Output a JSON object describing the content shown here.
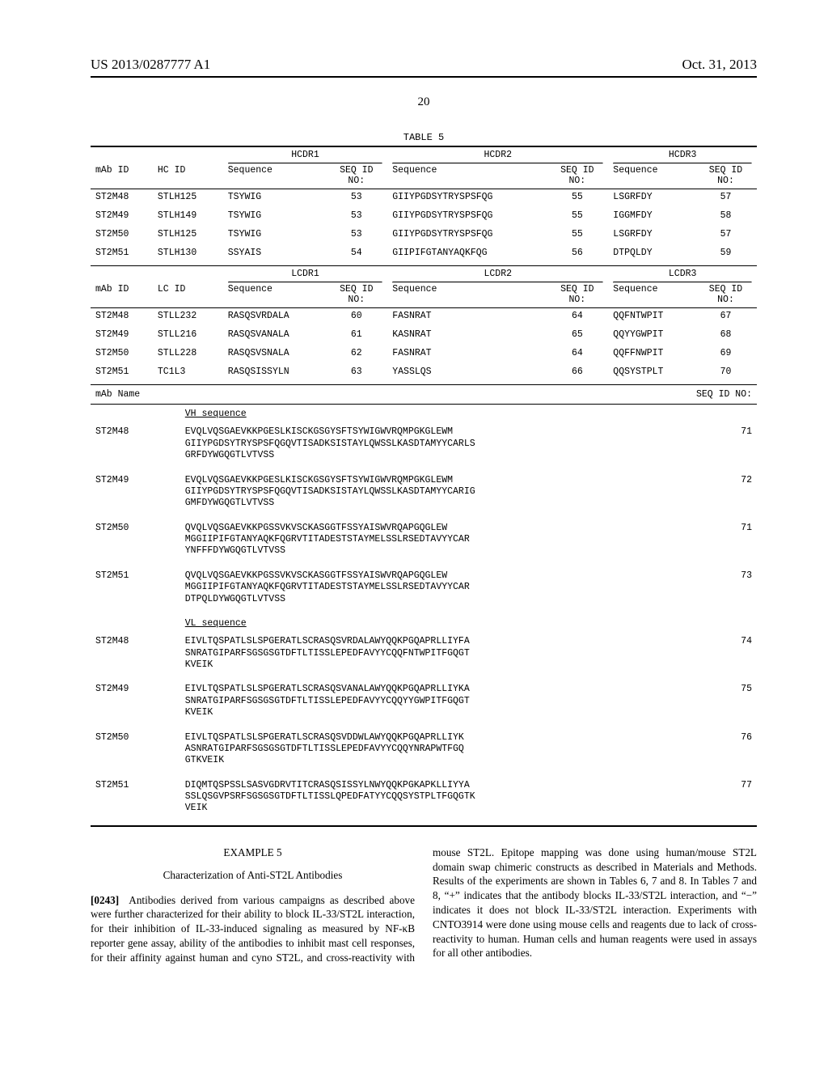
{
  "header": {
    "left": "US 2013/0287777 A1",
    "right": "Oct. 31, 2013",
    "page_number": "20"
  },
  "table5": {
    "caption": "TABLE 5",
    "heavy_groups": [
      "HCDR1",
      "HCDR2",
      "HCDR3"
    ],
    "heavy_columns": [
      "mAb ID",
      "HC ID",
      "Sequence",
      "SEQ ID\nNO:",
      "Sequence",
      "SEQ ID\nNO:",
      "Sequence",
      "SEQ ID\nNO:"
    ],
    "heavy_rows": [
      [
        "ST2M48",
        "STLH125",
        "TSYWIG",
        "53",
        "GIIYPGDSYTRYSPSFQG",
        "55",
        "LSGRFDY",
        "57"
      ],
      [
        "ST2M49",
        "STLH149",
        "TSYWIG",
        "53",
        "GIIYPGDSYTRYSPSFQG",
        "55",
        "IGGMFDY",
        "58"
      ],
      [
        "ST2M50",
        "STLH125",
        "TSYWIG",
        "53",
        "GIIYPGDSYTRYSPSFQG",
        "55",
        "LSGRFDY",
        "57"
      ],
      [
        "ST2M51",
        "STLH130",
        "SSYAIS",
        "54",
        "GIIPIFGTANYAQKFQG",
        "56",
        "DTPQLDY",
        "59"
      ]
    ],
    "light_groups": [
      "LCDR1",
      "LCDR2",
      "LCDR3"
    ],
    "light_columns": [
      "mAb ID",
      "LC ID",
      "Sequence",
      "SEQ ID\nNO:",
      "Sequence",
      "SEQ ID\nNO:",
      "Sequence",
      "SEQ ID\nNO:"
    ],
    "light_rows": [
      [
        "ST2M48",
        "STLL232",
        "RASQSVRDALA",
        "60",
        "FASNRAT",
        "64",
        "QQFNTWPIT",
        "67"
      ],
      [
        "ST2M49",
        "STLL216",
        "RASQSVANALA",
        "61",
        "KASNRAT",
        "65",
        "QQYYGWPIT",
        "68"
      ],
      [
        "ST2M50",
        "STLL228",
        "RASQSVSNALA",
        "62",
        "FASNRAT",
        "64",
        "QQFFNWPIT",
        "69"
      ],
      [
        "ST2M51",
        "TC1L3",
        "RASQSISSYLN",
        "63",
        "YASSLQS",
        "66",
        "QQSYSTPLT",
        "70"
      ]
    ],
    "seq_header": [
      "mAb Name",
      "",
      "SEQ ID NO:"
    ],
    "vh_label": "VH sequence",
    "vh_rows": [
      {
        "id": "ST2M48",
        "seq": "EVQLVQSGAEVKKPGESLKISCKGSGYSFTSYWIGWVRQMPGKGLEWM\nGIIYPGDSYTRYSPSFQGQVTISADKSISTAYLQWSSLKASDTAMYYCARLS\nGRFDYWGQGTLVTVSS",
        "no": "71"
      },
      {
        "id": "ST2M49",
        "seq": "EVQLVQSGAEVKKPGESLKISCKGSGYSFTSYWIGWVRQMPGKGLEWM\nGIIYPGDSYTRYSPSFQGQVTISADKSISTAYLQWSSLKASDTAMYYCARIG\nGMFDYWGQGTLVTVSS",
        "no": "72"
      },
      {
        "id": "ST2M50",
        "seq": "QVQLVQSGAEVKKPGSSVKVSCKASGGTFSSYAISWVRQAPGQGLEW\nMGGIIPIFGTANYAQKFQGRVTITADESTSTAYMELSSLRSEDTAVYYCAR\nYNFFFDYWGQGTLVTVSS",
        "no": "71"
      },
      {
        "id": "ST2M51",
        "seq": "QVQLVQSGAEVKKPGSSVKVSCKASGGTFSSYAISWVRQAPGQGLEW\nMGGIIPIFGTANYAQKFQGRVTITADESTSTAYMELSSLRSEDTAVYYCAR\nDTPQLDYWGQGTLVTVSS",
        "no": "73"
      }
    ],
    "vl_label": "VL sequence",
    "vl_rows": [
      {
        "id": "ST2M48",
        "seq": "EIVLTQSPATLSLSPGERATLSCRASQSVRDALAWYQQKPGQAPRLLIYFA\nSNRATGIPARFSGSGSGTDFTLTISSLEPEDFAVYYCQQFNTWPITFGQGT\nKVEIK",
        "no": "74"
      },
      {
        "id": "ST2M49",
        "seq": "EIVLTQSPATLSLSPGERATLSCRASQSVANALAWYQQKPGQAPRLLIYKA\nSNRATGIPARFSGSGSGTDFTLTISSLEPEDFAVYYCQQYYGWPITFGQGT\nKVEIK",
        "no": "75"
      },
      {
        "id": "ST2M50",
        "seq": "EIVLTQSPATLSLSPGERATLSCRASQSVDDWLAWYQQKPGQAPRLLIYK\nASNRATGIPARFSGSGSGTDFTLTISSLEPEDFAVYYCQQYNRAPWTFGQ\nGTKVEIK",
        "no": "76"
      },
      {
        "id": "ST2M51",
        "seq": "DIQMTQSPSSLSASVGDRVTITCRASQSISSYLNWYQQKPGKAPKLLIYYA\nSSLQSGVPSRFSGSGSGTDFTLTISSLQPEDFATYYCQQSYSTPLTFGQGTK\nVEIK",
        "no": "77"
      }
    ]
  },
  "example": {
    "title": "EXAMPLE 5",
    "subtitle": "Characterization of Anti-ST2L Antibodies",
    "para_num": "[0243]",
    "para_text": "Antibodies derived from various campaigns as described above were further characterized for their ability to block IL-33/ST2L interaction, for their inhibition of IL-33-induced signaling as measured by NF-κB reporter gene assay, ability of the antibodies to inhibit mast cell responses, for their affinity against human and cyno ST2L, and cross-reactivity with mouse ST2L. Epitope mapping was done using human/mouse ST2L domain swap chimeric constructs as described in Materials and Methods. Results of the experiments are shown in Tables 6, 7 and 8. In Tables 7 and 8, “+” indicates that the antibody blocks IL-33/ST2L interaction, and “−” indicates it does not block IL-33/ST2L interaction. Experiments with CNTO3914 were done using mouse cells and reagents due to lack of cross-reactivity to human. Human cells and human reagents were used in assays for all other antibodies."
  }
}
